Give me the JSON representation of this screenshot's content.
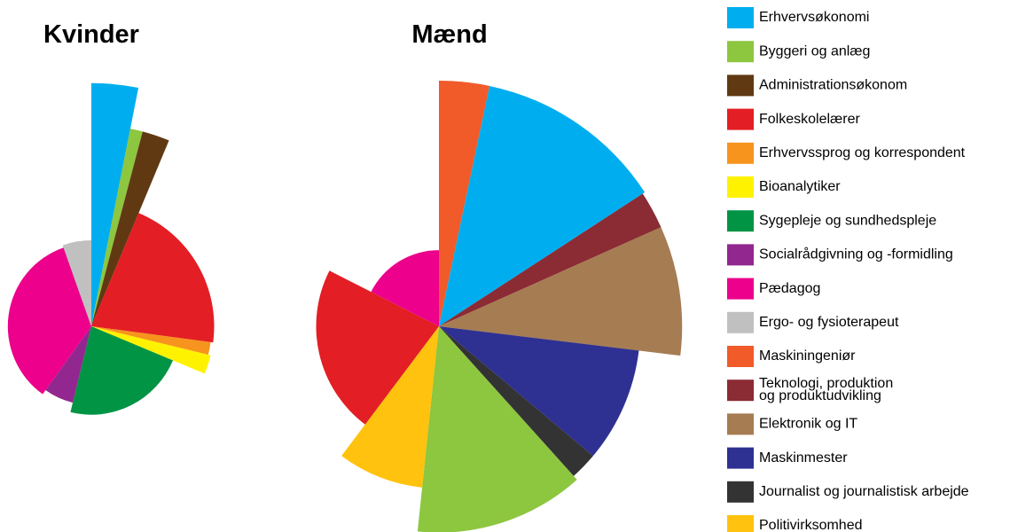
{
  "chart_data": [
    {
      "type": "pie",
      "title": "Kvinder",
      "values": [
        3.1,
        1.0,
        2.2,
        20.8,
        1.7,
        2.5,
        22.5,
        6.1,
        34.7,
        5.4
      ],
      "radii": [
        99,
        82,
        82,
        50,
        49,
        50,
        36,
        32,
        34,
        35
      ],
      "colors": [
        "#00aeef",
        "#8dc63f",
        "#603913",
        "#e31e24",
        "#f7941d",
        "#fff200",
        "#009444",
        "#92278f",
        "#ec008c",
        "#c0c0c0"
      ]
    },
    {
      "type": "pie",
      "title": "Mænd",
      "values": [
        3.3,
        12.5,
        2.5,
        8.6,
        9.2,
        2.2,
        13.3,
        8.6,
        22.2,
        17.5
      ],
      "radii": [
        100,
        100,
        99,
        99,
        82,
        82,
        84,
        66,
        50,
        31
      ],
      "colors": [
        "#f15a29",
        "#00aeef",
        "#8b2b34",
        "#a67c52",
        "#2e3192",
        "#333333",
        "#8dc63f",
        "#ffc20e",
        "#e31e24",
        "#ec008c"
      ]
    }
  ],
  "legend": [
    {
      "name": "Erhvervsøkonomi",
      "color": "#00aeef"
    },
    {
      "name": "Byggeri og anlæg",
      "color": "#8dc63f"
    },
    {
      "name": "Administrationsøkonom",
      "color": "#603913"
    },
    {
      "name": "Folkeskolelærer",
      "color": "#e31e24"
    },
    {
      "name": "Erhvervssprog og korrespondent",
      "color": "#f7941d"
    },
    {
      "name": "Bioanalytiker",
      "color": "#fff200"
    },
    {
      "name": "Sygepleje og sundhedspleje",
      "color": "#009444"
    },
    {
      "name": "Socialrådgivning og -formidling",
      "color": "#92278f"
    },
    {
      "name": "Pædagog",
      "color": "#ec008c"
    },
    {
      "name": "Ergo- og fysioterapeut",
      "color": "#c0c0c0"
    },
    {
      "name": "Maskiningeniør",
      "color": "#f15a29"
    },
    {
      "name": "Teknologi, produktion\nog produktudvikling",
      "color": "#8b2b34"
    },
    {
      "name": "Elektronik og IT",
      "color": "#a67c52"
    },
    {
      "name": "Maskinmester",
      "color": "#2e3192"
    },
    {
      "name": "Journalist og journalistisk arbejde",
      "color": "#333333"
    },
    {
      "name": "Politivirksomhed",
      "color": "#ffc20e"
    }
  ]
}
